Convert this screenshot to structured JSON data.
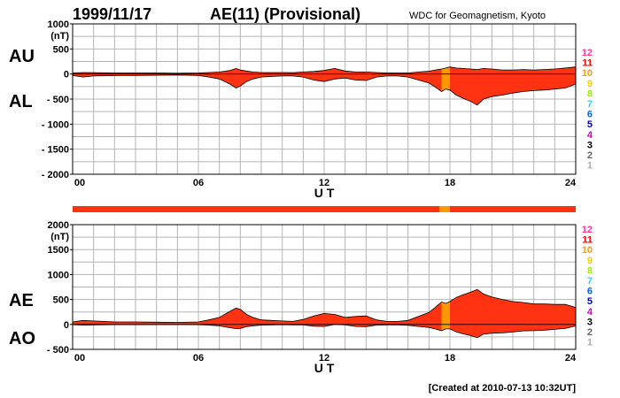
{
  "header": {
    "date": "1999/11/17",
    "title": "AE(11) (Provisional)",
    "source": "WDC for Geomagnetism, Kyoto"
  },
  "footer": {
    "created": "[Created at 2010-07-13 10:32UT]"
  },
  "colors": {
    "main_fill": "#ff3311",
    "alt_fill": "#ff9900",
    "grid": "#b4b4b4"
  },
  "station_counts": {
    "labels": [
      "12",
      "11",
      "10",
      "9",
      "8",
      "7",
      "6",
      "5",
      "4",
      "3",
      "2",
      "1"
    ],
    "colors": [
      "#ff3399",
      "#ff0000",
      "#ff9900",
      "#ffcc00",
      "#99ee00",
      "#33ccff",
      "#0066ff",
      "#0000cc",
      "#cc00cc",
      "#000000",
      "#666666",
      "#aaaaaa"
    ]
  },
  "chart_data": [
    {
      "type": "area",
      "name": "AU/AL",
      "ylabel_top": "(nT)",
      "label_upper": "AU",
      "label_lower": "AL",
      "xlabel": "U T",
      "xticks": [
        "00",
        "06",
        "12",
        "18",
        "24"
      ],
      "xlim": [
        0,
        24
      ],
      "ylim": [
        -2000,
        1000
      ],
      "yticks": [
        1000,
        500,
        0,
        -500,
        -1000,
        -1500,
        -2000
      ],
      "ytick_labels": [
        "1000",
        "500",
        "0",
        "- 500",
        "- 1000",
        "- 1500",
        "- 2000"
      ],
      "highlight_range_hours": [
        17.5,
        18.0
      ],
      "series": [
        {
          "name": "AU",
          "x": [
            0,
            0.5,
            1,
            2,
            3,
            4,
            5,
            6,
            6.5,
            7,
            7.5,
            7.8,
            8,
            8.3,
            8.6,
            9,
            9.5,
            10,
            10.5,
            11,
            11.5,
            12,
            12.5,
            13,
            13.5,
            14,
            14.5,
            15,
            15.5,
            16,
            16.5,
            17,
            17.3,
            17.6,
            17.8,
            18,
            18.3,
            18.6,
            19,
            19.3,
            19.6,
            20,
            20.5,
            21,
            21.5,
            22,
            22.5,
            23,
            23.5,
            24
          ],
          "values": [
            20,
            30,
            25,
            20,
            20,
            20,
            15,
            20,
            30,
            40,
            70,
            110,
            80,
            60,
            40,
            30,
            30,
            30,
            25,
            40,
            50,
            70,
            110,
            60,
            40,
            40,
            30,
            20,
            20,
            20,
            40,
            55,
            80,
            100,
            120,
            140,
            120,
            110,
            100,
            90,
            110,
            100,
            80,
            80,
            90,
            80,
            90,
            100,
            120,
            140
          ]
        },
        {
          "name": "AL",
          "x": [
            0,
            0.5,
            1,
            2,
            3,
            4,
            5,
            6,
            6.5,
            7,
            7.5,
            7.8,
            8,
            8.3,
            8.6,
            9,
            9.5,
            10,
            10.5,
            11,
            11.5,
            12,
            12.5,
            13,
            13.5,
            14,
            14.5,
            15,
            15.5,
            16,
            16.5,
            17,
            17.3,
            17.6,
            17.8,
            18,
            18.3,
            18.6,
            19,
            19.3,
            19.6,
            20,
            20.5,
            21,
            21.5,
            22,
            22.5,
            23,
            23.5,
            24
          ],
          "values": [
            -30,
            -60,
            -40,
            -30,
            -30,
            -25,
            -20,
            -30,
            -60,
            -100,
            -200,
            -280,
            -240,
            -150,
            -100,
            -60,
            -50,
            -40,
            -40,
            -60,
            -120,
            -150,
            -100,
            -80,
            -120,
            -130,
            -60,
            -40,
            -40,
            -60,
            -120,
            -180,
            -260,
            -350,
            -300,
            -320,
            -420,
            -480,
            -550,
            -620,
            -500,
            -450,
            -420,
            -380,
            -350,
            -330,
            -320,
            -300,
            -280,
            -200
          ]
        }
      ]
    },
    {
      "type": "area",
      "name": "AE/AO",
      "ylabel_top": "(nT)",
      "label_upper": "AE",
      "label_lower": "AO",
      "xlabel": "U T",
      "xticks": [
        "00",
        "06",
        "12",
        "18",
        "24"
      ],
      "xlim": [
        0,
        24
      ],
      "ylim": [
        -500,
        2000
      ],
      "yticks": [
        2000,
        1500,
        1000,
        500,
        0,
        -500
      ],
      "ytick_labels": [
        "2000",
        "1500",
        "1000",
        "500",
        "0",
        "- 500"
      ],
      "highlight_range_hours": [
        17.5,
        18.0
      ],
      "series": [
        {
          "name": "AE",
          "x": [
            0,
            0.5,
            1,
            2,
            3,
            4,
            5,
            6,
            6.5,
            7,
            7.5,
            7.8,
            8,
            8.3,
            8.6,
            9,
            9.5,
            10,
            10.5,
            11,
            11.5,
            12,
            12.5,
            13,
            13.5,
            14,
            14.5,
            15,
            15.5,
            16,
            16.5,
            17,
            17.3,
            17.6,
            17.8,
            18,
            18.3,
            18.6,
            19,
            19.3,
            19.6,
            20,
            20.5,
            21,
            21.5,
            22,
            22.5,
            23,
            23.5,
            24
          ],
          "values": [
            50,
            80,
            70,
            50,
            50,
            45,
            40,
            50,
            90,
            140,
            260,
            330,
            300,
            200,
            140,
            90,
            80,
            70,
            60,
            100,
            170,
            220,
            200,
            140,
            160,
            170,
            90,
            60,
            60,
            80,
            160,
            240,
            340,
            450,
            420,
            460,
            540,
            590,
            650,
            700,
            610,
            550,
            500,
            460,
            440,
            410,
            410,
            400,
            400,
            340
          ]
        },
        {
          "name": "AO",
          "x": [
            0,
            0.5,
            1,
            2,
            3,
            4,
            5,
            6,
            6.5,
            7,
            7.5,
            7.8,
            8,
            8.3,
            8.6,
            9,
            9.5,
            10,
            10.5,
            11,
            11.5,
            12,
            12.5,
            13,
            13.5,
            14,
            14.5,
            15,
            15.5,
            16,
            16.5,
            17,
            17.3,
            17.6,
            17.8,
            18,
            18.3,
            18.6,
            19,
            19.3,
            19.6,
            20,
            20.5,
            21,
            21.5,
            22,
            22.5,
            23,
            23.5,
            24
          ],
          "values": [
            -5,
            -15,
            -8,
            -5,
            -5,
            -3,
            -3,
            -5,
            -15,
            -30,
            -65,
            -85,
            -80,
            -45,
            -30,
            -15,
            -10,
            -5,
            -8,
            -10,
            -35,
            -40,
            0,
            -10,
            -40,
            -45,
            -15,
            -10,
            -10,
            -20,
            -40,
            -60,
            -90,
            -125,
            -90,
            -90,
            -150,
            -185,
            -225,
            -265,
            -195,
            -175,
            -170,
            -150,
            -130,
            -125,
            -115,
            -100,
            -80,
            -30
          ]
        }
      ]
    }
  ]
}
